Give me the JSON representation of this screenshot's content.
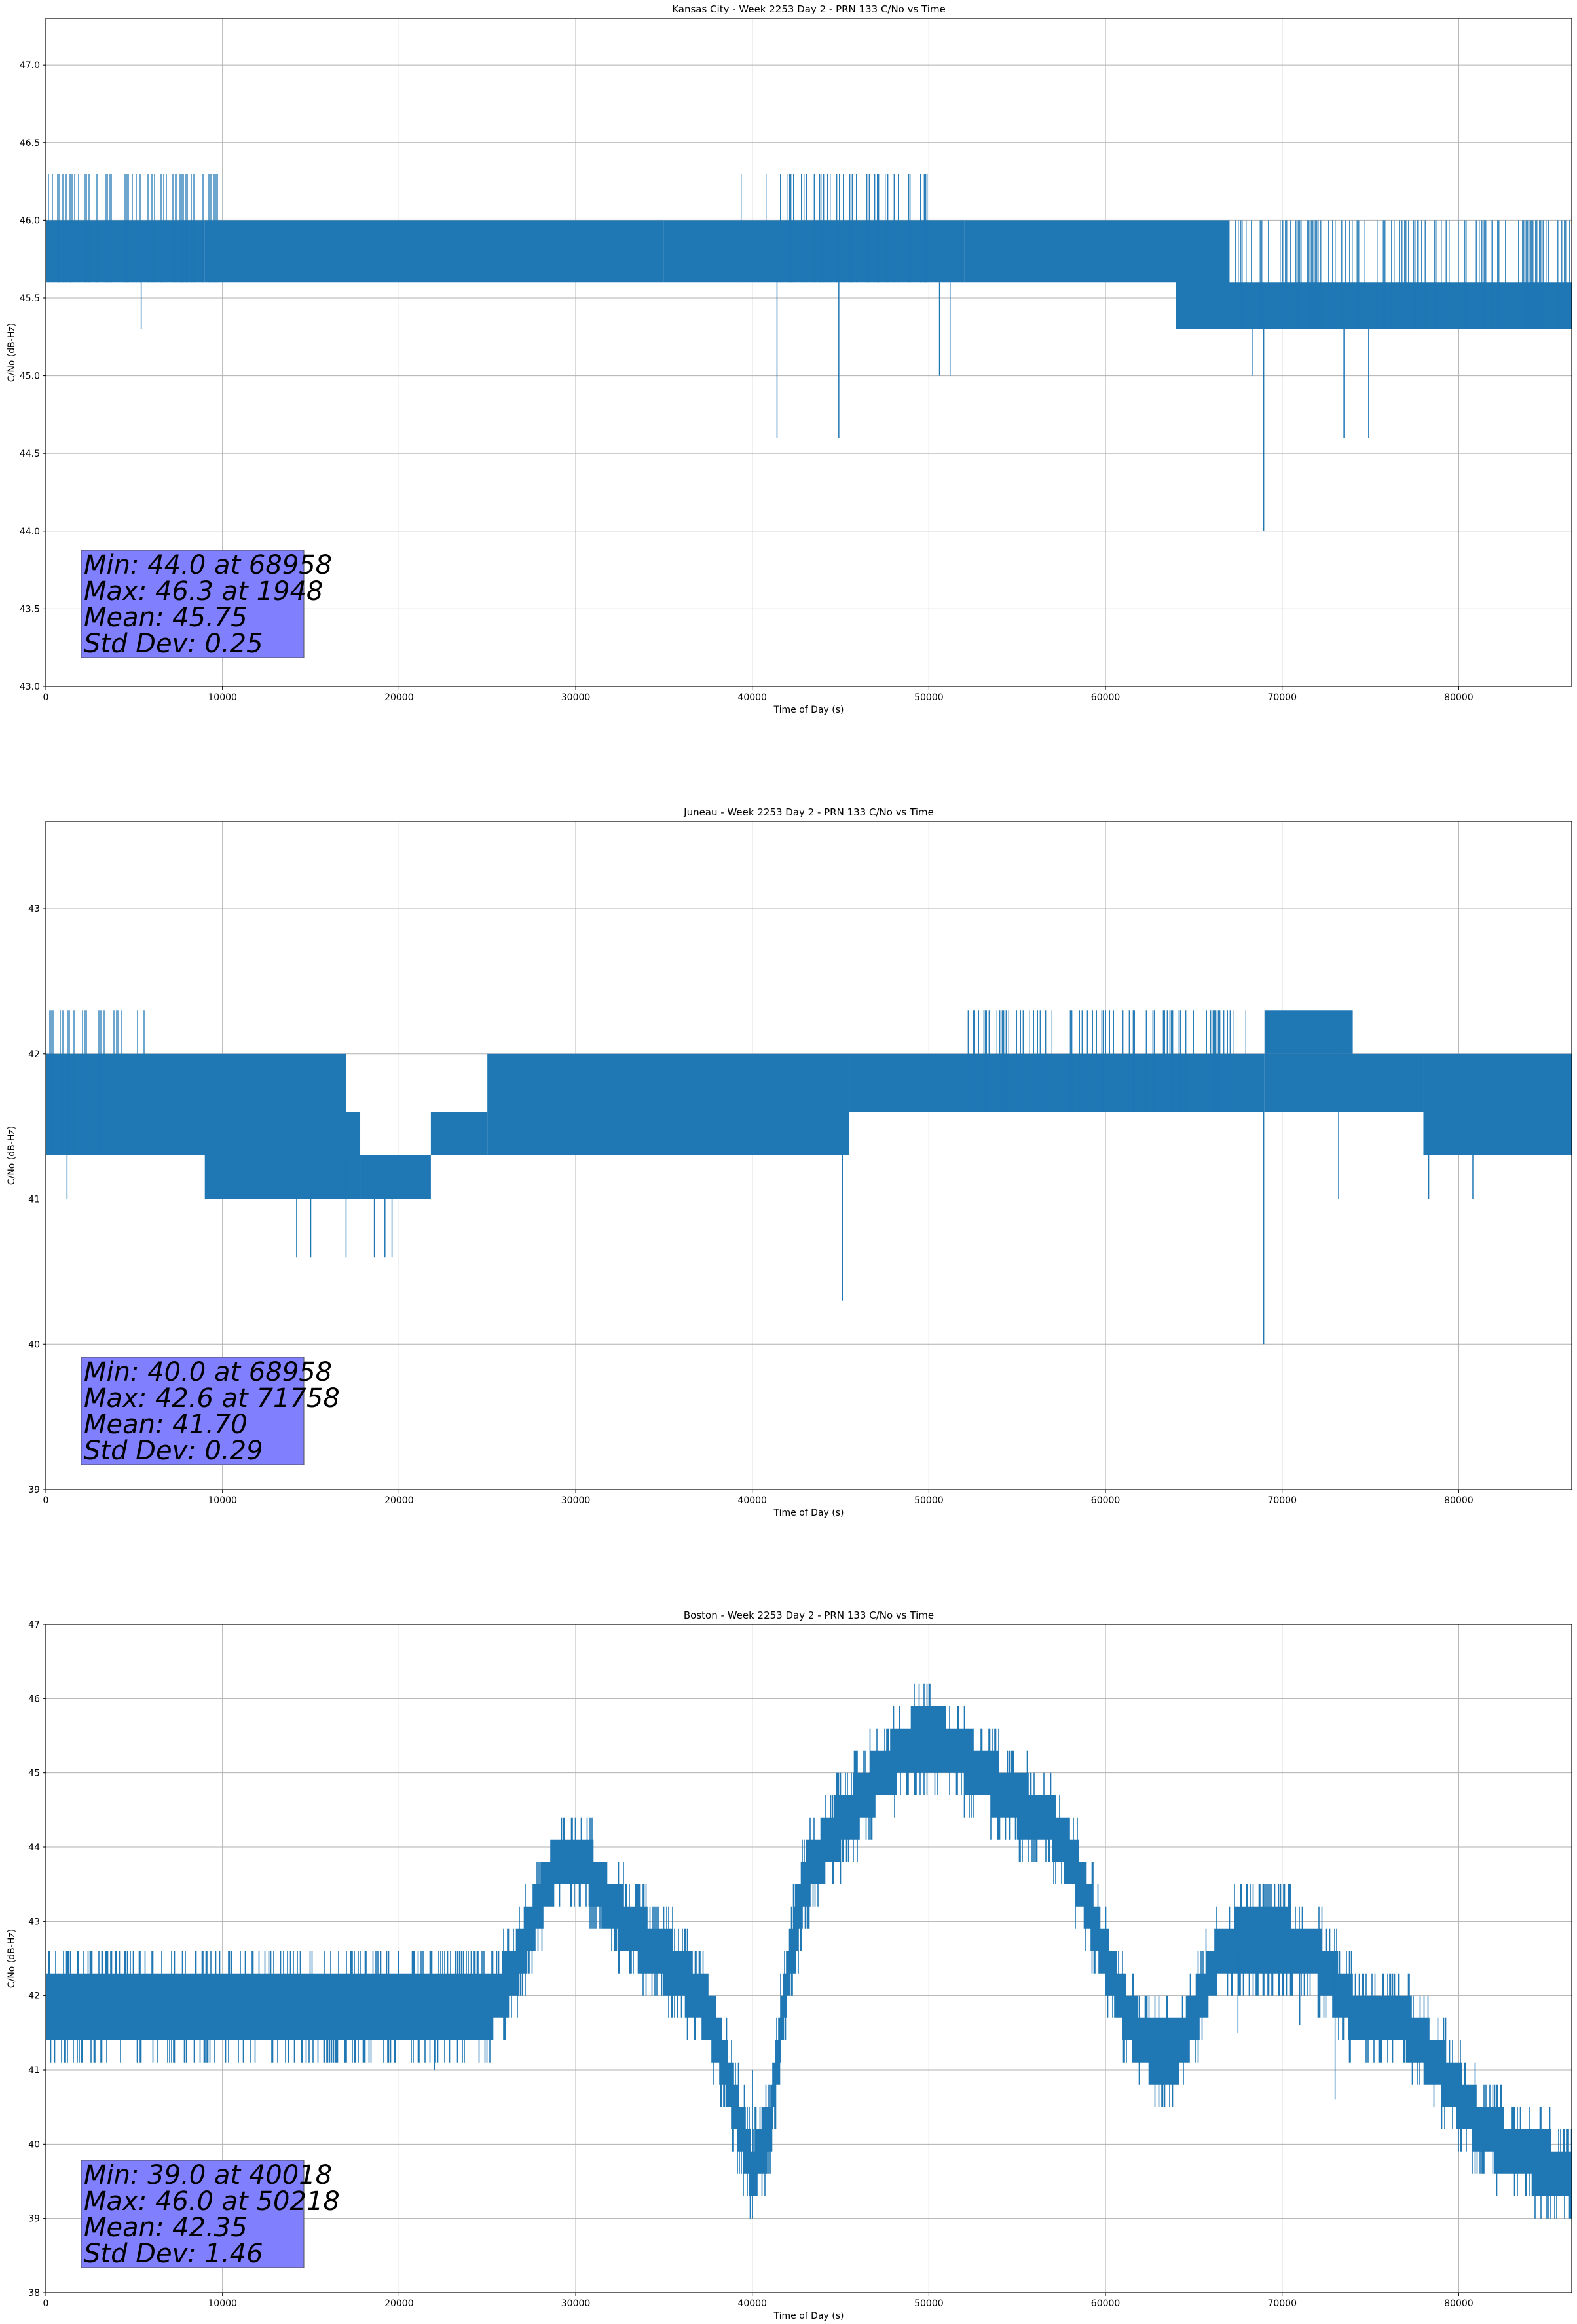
{
  "chart_data": [
    {
      "type": "line",
      "title": "Kansas City - Week 2253 Day 2 - PRN 133 C/No vs Time",
      "xlabel": "Time of Day (s)",
      "ylabel": "C/No (dB-Hz)",
      "xlim": [
        0,
        86400
      ],
      "ylim": [
        43.0,
        47.3
      ],
      "xticks": [
        0,
        10000,
        20000,
        30000,
        40000,
        50000,
        60000,
        70000,
        80000
      ],
      "yticks": [
        43.0,
        43.5,
        44.0,
        44.5,
        45.0,
        45.5,
        46.0,
        46.5,
        47.0
      ],
      "ytick_labels": [
        "43.0",
        "43.5",
        "44.0",
        "44.5",
        "45.0",
        "45.5",
        "46.0",
        "46.5",
        "47.0"
      ],
      "grid": true,
      "line_color": "#1f77b4",
      "band_segments": [
        {
          "x": [
            0,
            9000
          ],
          "low": 45.6,
          "high": 46.0
        },
        {
          "x": [
            0,
            10000
          ],
          "low": 45.6,
          "high": 46.3,
          "density": 0.35
        },
        {
          "x": [
            9000,
            35000
          ],
          "low": 45.6,
          "high": 46.0
        },
        {
          "x": [
            35000,
            52000
          ],
          "low": 45.6,
          "high": 46.0
        },
        {
          "x": [
            39000,
            50000
          ],
          "low": 45.6,
          "high": 46.3,
          "density": 0.3
        },
        {
          "x": [
            52000,
            64000
          ],
          "low": 45.6,
          "high": 46.0
        },
        {
          "x": [
            64000,
            67000
          ],
          "low": 45.3,
          "high": 46.0
        },
        {
          "x": [
            67000,
            86400
          ],
          "low": 45.3,
          "high": 45.6
        },
        {
          "x": [
            67000,
            86400
          ],
          "low": 45.3,
          "high": 46.0,
          "density": 0.35
        }
      ],
      "dips": [
        [
          5400,
          45.3
        ],
        [
          41400,
          44.6
        ],
        [
          44900,
          44.6
        ],
        [
          50600,
          45.0
        ],
        [
          51200,
          45.0
        ],
        [
          68300,
          45.0
        ],
        [
          68958,
          44.0
        ],
        [
          73500,
          44.6
        ],
        [
          74900,
          44.6
        ]
      ],
      "stats": [
        "Min: 44.0 at 68958",
        "Max: 46.3 at 1948",
        "Mean: 45.75",
        "Std Dev: 0.25"
      ]
    },
    {
      "type": "line",
      "title": "Juneau - Week 2253 Day 2 - PRN 133 C/No vs Time",
      "xlabel": "Time of Day (s)",
      "ylabel": "C/No (dB-Hz)",
      "xlim": [
        0,
        86400
      ],
      "ylim": [
        39,
        43.6
      ],
      "xticks": [
        0,
        10000,
        20000,
        30000,
        40000,
        50000,
        60000,
        70000,
        80000
      ],
      "yticks": [
        39,
        40,
        41,
        42,
        43
      ],
      "ytick_labels": [
        "39",
        "40",
        "41",
        "42",
        "43"
      ],
      "grid": true,
      "line_color": "#1f77b4",
      "band_segments": [
        {
          "x": [
            0,
            3800
          ],
          "low": 41.3,
          "high": 42.0
        },
        {
          "x": [
            0,
            6000
          ],
          "low": 41.3,
          "high": 42.3,
          "density": 0.3
        },
        {
          "x": [
            3800,
            17000
          ],
          "low": 41.3,
          "high": 42.0
        },
        {
          "x": [
            9000,
            17800
          ],
          "low": 41.0,
          "high": 41.6
        },
        {
          "x": [
            17800,
            21800
          ],
          "low": 41.0,
          "high": 41.3
        },
        {
          "x": [
            21800,
            25000
          ],
          "low": 41.3,
          "high": 41.6
        },
        {
          "x": [
            25000,
            45500
          ],
          "low": 41.3,
          "high": 42.0
        },
        {
          "x": [
            45500,
            69000
          ],
          "low": 41.6,
          "high": 42.0
        },
        {
          "x": [
            52000,
            68000
          ],
          "low": 41.6,
          "high": 42.3,
          "density": 0.3
        },
        {
          "x": [
            69000,
            74000
          ],
          "low": 42.0,
          "high": 42.3
        },
        {
          "x": [
            69000,
            78000
          ],
          "low": 41.6,
          "high": 42.0
        },
        {
          "x": [
            78000,
            86400
          ],
          "low": 41.3,
          "high": 42.0
        }
      ],
      "dips": [
        [
          1200,
          41.0
        ],
        [
          14200,
          40.6
        ],
        [
          15000,
          40.6
        ],
        [
          17000,
          40.6
        ],
        [
          18600,
          40.6
        ],
        [
          19200,
          40.6
        ],
        [
          19600,
          40.6
        ],
        [
          45100,
          40.3
        ],
        [
          68958,
          40.0
        ],
        [
          73200,
          41.0
        ],
        [
          78300,
          41.0
        ],
        [
          80800,
          41.0
        ]
      ],
      "stats": [
        "Min: 40.0 at 68958",
        "Max: 42.6 at 71758",
        "Mean: 41.70",
        "Std Dev: 0.29"
      ]
    },
    {
      "type": "line",
      "title": "Boston - Week 2253 Day 2 - PRN 133 C/No vs Time",
      "xlabel": "Time of Day (s)",
      "ylabel": "C/No (dB-Hz)",
      "xlim": [
        0,
        86400
      ],
      "ylim": [
        38,
        47
      ],
      "xticks": [
        0,
        10000,
        20000,
        30000,
        40000,
        50000,
        60000,
        70000,
        80000
      ],
      "yticks": [
        38,
        39,
        40,
        41,
        42,
        43,
        44,
        45,
        46,
        47
      ],
      "ytick_labels": [
        "38",
        "39",
        "40",
        "41",
        "42",
        "43",
        "44",
        "45",
        "46",
        "47"
      ],
      "grid": true,
      "line_color": "#1f77b4",
      "center_curve": [
        [
          0,
          41.8
        ],
        [
          25000,
          41.8
        ],
        [
          26500,
          42.3
        ],
        [
          28000,
          43.3
        ],
        [
          29000,
          43.8
        ],
        [
          30500,
          43.8
        ],
        [
          32000,
          43.2
        ],
        [
          33500,
          42.8
        ],
        [
          36000,
          42.3
        ],
        [
          37500,
          41.8
        ],
        [
          38500,
          41.0
        ],
        [
          40018,
          39.6
        ],
        [
          41000,
          40.3
        ],
        [
          42000,
          42.3
        ],
        [
          43000,
          43.6
        ],
        [
          45000,
          44.3
        ],
        [
          47000,
          44.9
        ],
        [
          49000,
          45.4
        ],
        [
          51000,
          45.4
        ],
        [
          53000,
          45.0
        ],
        [
          55000,
          44.6
        ],
        [
          57000,
          44.3
        ],
        [
          58500,
          43.6
        ],
        [
          60000,
          42.5
        ],
        [
          61500,
          41.6
        ],
        [
          62800,
          41.2
        ],
        [
          64000,
          41.2
        ],
        [
          65500,
          42.0
        ],
        [
          66500,
          42.6
        ],
        [
          68000,
          42.8
        ],
        [
          70500,
          42.7
        ],
        [
          72000,
          42.5
        ],
        [
          74000,
          41.8
        ],
        [
          77000,
          41.6
        ],
        [
          79000,
          41.0
        ],
        [
          81000,
          40.3
        ],
        [
          83000,
          39.9
        ],
        [
          86400,
          39.6
        ]
      ],
      "band_halfwidth": 0.35,
      "dips": [
        [
          22000,
          41.0
        ],
        [
          40018,
          39.0
        ],
        [
          45000,
          43.6
        ],
        [
          67500,
          41.5
        ],
        [
          71000,
          41.6
        ],
        [
          73000,
          40.6
        ],
        [
          80000,
          40.3
        ]
      ],
      "stats": [
        "Min: 39.0 at 40018",
        "Max: 46.0 at 50218",
        "Mean: 42.35",
        "Std Dev: 1.46"
      ]
    }
  ]
}
